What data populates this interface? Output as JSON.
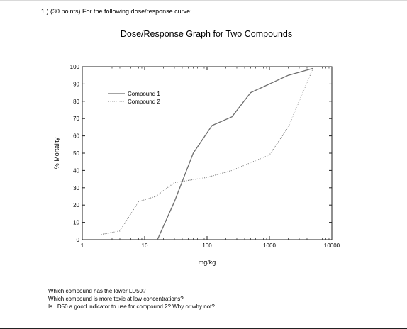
{
  "question_header": "1.) (30 points) For the following dose/response curve:",
  "chart_data": {
    "type": "line",
    "title": "Dose/Response Graph for Two Compounds",
    "xlabel": "mg/kg",
    "ylabel": "% Mortality",
    "x_scale": "log",
    "xlim": [
      1,
      10000
    ],
    "ylim": [
      0,
      100
    ],
    "x_ticks": [
      {
        "value": 1,
        "label": "1"
      },
      {
        "value": 10,
        "label": "10"
      },
      {
        "value": 100,
        "label": "100"
      },
      {
        "value": 1000,
        "label": "1000"
      },
      {
        "value": 10000,
        "label": "10000"
      }
    ],
    "y_ticks": [
      {
        "value": 0,
        "label": "0"
      },
      {
        "value": 10,
        "label": "10"
      },
      {
        "value": 20,
        "label": "20"
      },
      {
        "value": 30,
        "label": "30"
      },
      {
        "value": 40,
        "label": "40"
      },
      {
        "value": 50,
        "label": "50"
      },
      {
        "value": 60,
        "label": "60"
      },
      {
        "value": 70,
        "label": "70"
      },
      {
        "value": 80,
        "label": "80"
      },
      {
        "value": 90,
        "label": "90"
      },
      {
        "value": 100,
        "label": "100"
      }
    ],
    "legend": {
      "position": "top-left"
    },
    "series": [
      {
        "name": "Compound 1",
        "style": "solid",
        "color": "#6e6e6e",
        "points": [
          {
            "x": 16,
            "y": 0
          },
          {
            "x": 30,
            "y": 22
          },
          {
            "x": 60,
            "y": 50
          },
          {
            "x": 120,
            "y": 66
          },
          {
            "x": 250,
            "y": 71
          },
          {
            "x": 500,
            "y": 85
          },
          {
            "x": 2000,
            "y": 95
          },
          {
            "x": 5000,
            "y": 99
          }
        ]
      },
      {
        "name": "Compound 2",
        "style": "dotted",
        "color": "#7a7a7a",
        "points": [
          {
            "x": 2,
            "y": 3
          },
          {
            "x": 4,
            "y": 5
          },
          {
            "x": 8,
            "y": 22
          },
          {
            "x": 15,
            "y": 25
          },
          {
            "x": 30,
            "y": 33
          },
          {
            "x": 100,
            "y": 36
          },
          {
            "x": 250,
            "y": 40
          },
          {
            "x": 1000,
            "y": 49
          },
          {
            "x": 2000,
            "y": 65
          },
          {
            "x": 5000,
            "y": 99
          }
        ]
      }
    ]
  },
  "prompts": [
    "Which compound has the lower LD50?",
    "Which compound is more toxic at low concentrations?",
    "Is LD50 a good indicator to use for compound 2?  Why or why not?"
  ]
}
